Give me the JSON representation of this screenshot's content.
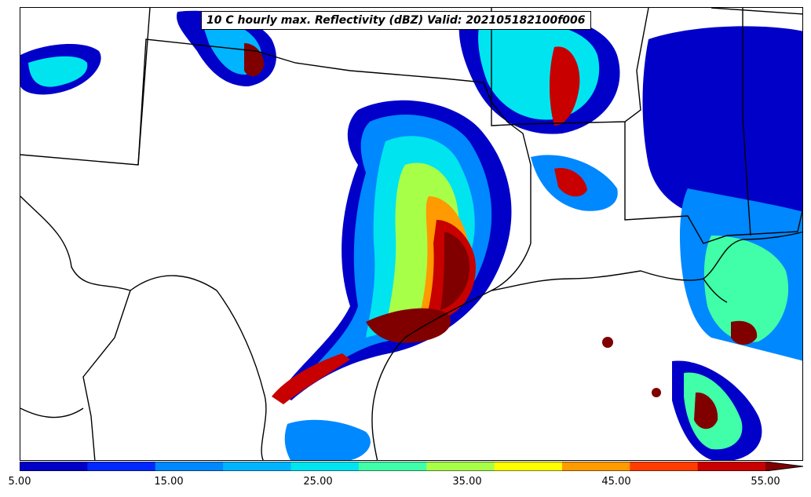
{
  "title": "10 C hourly max. Reflectivity (dBZ) Valid: 202105182100f006",
  "colorbar": {
    "min": 5,
    "max": 55,
    "step": 5,
    "extend": "max",
    "colors": [
      "#0000c8",
      "#0028ff",
      "#0088ff",
      "#00b4ff",
      "#00e4f0",
      "#40ffa8",
      "#a8ff48",
      "#ffff00",
      "#ff9a00",
      "#ff3c00",
      "#c80000",
      "#800000"
    ],
    "tick_labels": [
      "5.00",
      "15.00",
      "25.00",
      "35.00",
      "45.00",
      "55.00"
    ]
  }
}
